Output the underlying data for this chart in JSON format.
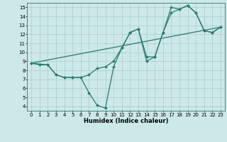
{
  "xlabel": "Humidex (Indice chaleur)",
  "bg_color": "#cce8e8",
  "line_color": "#2a7a70",
  "xlim": [
    -0.5,
    23.5
  ],
  "ylim": [
    3.5,
    15.5
  ],
  "xticks": [
    0,
    1,
    2,
    3,
    4,
    5,
    6,
    7,
    8,
    9,
    10,
    11,
    12,
    13,
    14,
    15,
    16,
    17,
    18,
    19,
    20,
    21,
    22,
    23
  ],
  "yticks": [
    4,
    5,
    6,
    7,
    8,
    9,
    10,
    11,
    12,
    13,
    14,
    15
  ],
  "line1_x": [
    0,
    1,
    2,
    3,
    4,
    5,
    6,
    7,
    8,
    9,
    10,
    11,
    12,
    13,
    14,
    15,
    16,
    17,
    18,
    19,
    20,
    21,
    22,
    23
  ],
  "line1_y": [
    8.8,
    8.6,
    8.6,
    7.5,
    7.2,
    7.2,
    7.2,
    5.5,
    4.1,
    3.8,
    8.4,
    10.5,
    12.2,
    12.6,
    9.0,
    9.5,
    12.2,
    15.0,
    14.8,
    15.2,
    14.4,
    12.4,
    12.2,
    12.8
  ],
  "line2_x": [
    0,
    2,
    3,
    4,
    5,
    6,
    7,
    8,
    9,
    10,
    11,
    12,
    13,
    14,
    15,
    16,
    17,
    18,
    19,
    20,
    21,
    22,
    23
  ],
  "line2_y": [
    8.8,
    8.6,
    7.5,
    7.2,
    7.2,
    7.2,
    7.5,
    8.2,
    8.4,
    9.0,
    10.5,
    12.2,
    12.6,
    9.5,
    9.5,
    12.2,
    14.4,
    14.8,
    15.2,
    14.4,
    12.4,
    12.2,
    12.8
  ],
  "line3_x": [
    0,
    23
  ],
  "line3_y": [
    8.8,
    12.8
  ],
  "marker_size": 2.0,
  "linewidth": 0.9,
  "grid_color": "#aacccc",
  "tick_fontsize": 5.0,
  "xlabel_fontsize": 6.0
}
